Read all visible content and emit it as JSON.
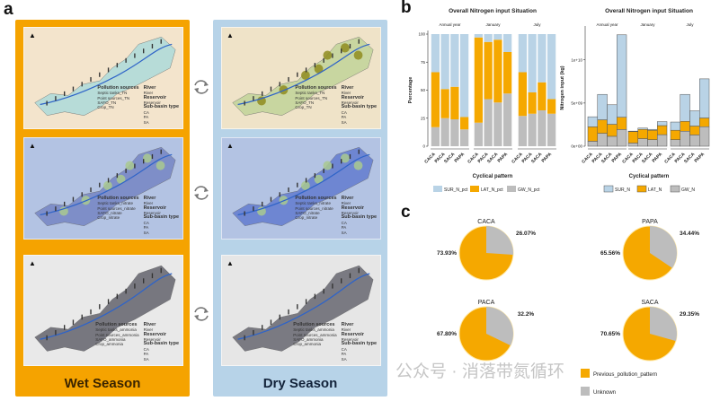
{
  "panels": {
    "a": "a",
    "b": "b",
    "c": "c"
  },
  "seasons": {
    "wet": {
      "title": "Wet Season",
      "color": "#f5a300"
    },
    "dry": {
      "title": "Dry Season",
      "color": "#b7d3e8"
    }
  },
  "maps": {
    "legend_common": {
      "sources": "Pollution sources",
      "river": "River",
      "river_item": "River",
      "reservoir": "Reservoir",
      "reservoir_item": "Reservoir",
      "subbasin": "Sub-basin type",
      "types": [
        "CA",
        "PA",
        "SA"
      ]
    },
    "rows": [
      {
        "sources": [
          "Septic tanks_TN",
          "Point sources_TN",
          "SAFO_TN",
          "Crop_TN"
        ]
      },
      {
        "sources": [
          "Septic tanks_nitrate",
          "Point sources_nitrate",
          "SAFO_nitrate",
          "Crop_nitrate"
        ]
      },
      {
        "sources": [
          "Septic tanks_ammonia",
          "Point sources_ammonia",
          "SAFO_ammonia",
          "Crop_ammonia"
        ]
      }
    ],
    "north_icon": "north-arrow-icon",
    "cycle_icon": "refresh-cycle-icon"
  },
  "chart_data": [
    {
      "type": "bar",
      "stacked": true,
      "title": "Overall Nitrogen input Situation",
      "xlabel": "Cyclical pattern",
      "ylabel": "Percentage",
      "facets": [
        "Annual year",
        "January",
        "July"
      ],
      "categories": [
        "CACA",
        "PACA",
        "SACA",
        "PAPA"
      ],
      "ylim": [
        0,
        100
      ],
      "yticks": [
        "0",
        "25",
        "50",
        "75",
        "100"
      ],
      "legend_position": "bottom",
      "series": [
        {
          "name": "GW_N_pct",
          "color": "#bdbdbd",
          "values": [
            [
              17,
              25,
              24,
              15
            ],
            [
              21,
              42,
              39,
              47
            ],
            [
              27,
              29,
              32,
              29
            ]
          ]
        },
        {
          "name": "LAT_N_pct",
          "color": "#f5a800",
          "values": [
            [
              49,
              26,
              29,
              11
            ],
            [
              76,
              51,
              56,
              37
            ],
            [
              39,
              19,
              25,
              13
            ]
          ]
        },
        {
          "name": "SUR_N_pct",
          "color": "#b9d3e6",
          "values": [
            [
              34,
              49,
              47,
              74
            ],
            [
              3,
              7,
              5,
              16
            ],
            [
              34,
              52,
              43,
              58
            ]
          ]
        }
      ],
      "legend_order": [
        "SUR_N_pct",
        "LAT_N_pct",
        "GW_N_pct"
      ]
    },
    {
      "type": "bar",
      "stacked": true,
      "title": "Overall Nitrogen input Situation",
      "xlabel": "Cyclical pattern",
      "ylabel": "Nitrogen input (kg)",
      "facets": [
        "Annual year",
        "January",
        "July"
      ],
      "categories": [
        "CACA",
        "PACA",
        "SACA",
        "PAPA"
      ],
      "ylim": [
        0,
        13500000000
      ],
      "yticks": [
        "0e+00",
        "5e+09",
        "1e+10"
      ],
      "ytick_values": [
        0,
        5000000000,
        10000000000
      ],
      "legend_position": "bottom",
      "series": [
        {
          "name": "GW_N",
          "color": "#bdbdbd",
          "values": [
            [
              580000000,
              1500000000,
              1150000000,
              1940000000
            ],
            [
              370000000,
              880000000,
              760000000,
              1340000000
            ],
            [
              760000000,
              1740000000,
              1310000000,
              2260000000
            ]
          ]
        },
        {
          "name": "LAT_N",
          "color": "#f5a800",
          "values": [
            [
              1670000000,
              1560000000,
              1390000000,
              1420000000
            ],
            [
              1330000000,
              1070000000,
              1090000000,
              1050000000
            ],
            [
              1090000000,
              1140000000,
              1030000000,
              1010000000
            ]
          ]
        },
        {
          "name": "SUR_N",
          "color": "#b9d3e6",
          "values": [
            [
              1160000000,
              2940000000,
              2260000000,
              9540000000
            ],
            [
              50000000,
              150000000,
              100000000,
              460000000
            ],
            [
              950000000,
              3120000000,
              1760000000,
              4530000000
            ]
          ]
        }
      ],
      "legend_order": [
        "SUR_N",
        "LAT_N",
        "GW_N"
      ]
    },
    {
      "type": "pie",
      "legend": [
        {
          "name": "Previous_pollution_pattern",
          "color": "#f5a800"
        },
        {
          "name": "Unknown",
          "color": "#bdbdbd"
        }
      ],
      "pies": [
        {
          "title": "CACA",
          "values": [
            73.93,
            26.07
          ],
          "labels": [
            "73.93%",
            "26.07%"
          ]
        },
        {
          "title": "PAPA",
          "values": [
            65.56,
            34.44
          ],
          "labels": [
            "65.56%",
            "34.44%"
          ]
        },
        {
          "title": "PACA",
          "values": [
            67.8,
            32.2
          ],
          "labels": [
            "67.80%",
            "32.2%"
          ]
        },
        {
          "title": "SACA",
          "values": [
            70.65,
            29.35
          ],
          "labels": [
            "70.65%",
            "29.35%"
          ]
        }
      ]
    }
  ],
  "watermark": "公众号 · 消落带氮循环"
}
